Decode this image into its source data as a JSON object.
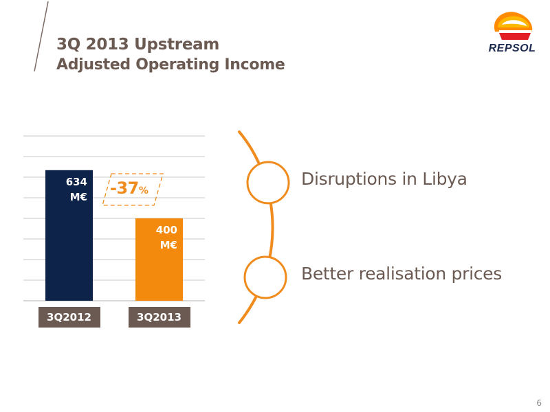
{
  "header": {
    "title": "3Q 2013 Upstream",
    "subtitle": "Adjusted Operating Income"
  },
  "logo": {
    "text": "REPSOL"
  },
  "chart_data": {
    "type": "bar",
    "categories": [
      "3Q2012",
      "3Q2013"
    ],
    "values": [
      634,
      400
    ],
    "data_labels": [
      {
        "value": "634",
        "unit": "M€"
      },
      {
        "value": "400",
        "unit": "M€"
      }
    ],
    "colors": [
      "#0d234a",
      "#f48a0d"
    ],
    "grid": true,
    "ylim": [
      0,
      800
    ],
    "change_label": {
      "value": "-37",
      "unit": "%"
    }
  },
  "drivers": [
    {
      "label": "Disruptions in Libya"
    },
    {
      "label": "Better realisation prices"
    }
  ],
  "colors": {
    "accent": "#f08c1e",
    "navy": "#0d234a",
    "text": "#6b5a52",
    "grid": "#c8c8c8"
  },
  "page": {
    "number": "6"
  }
}
